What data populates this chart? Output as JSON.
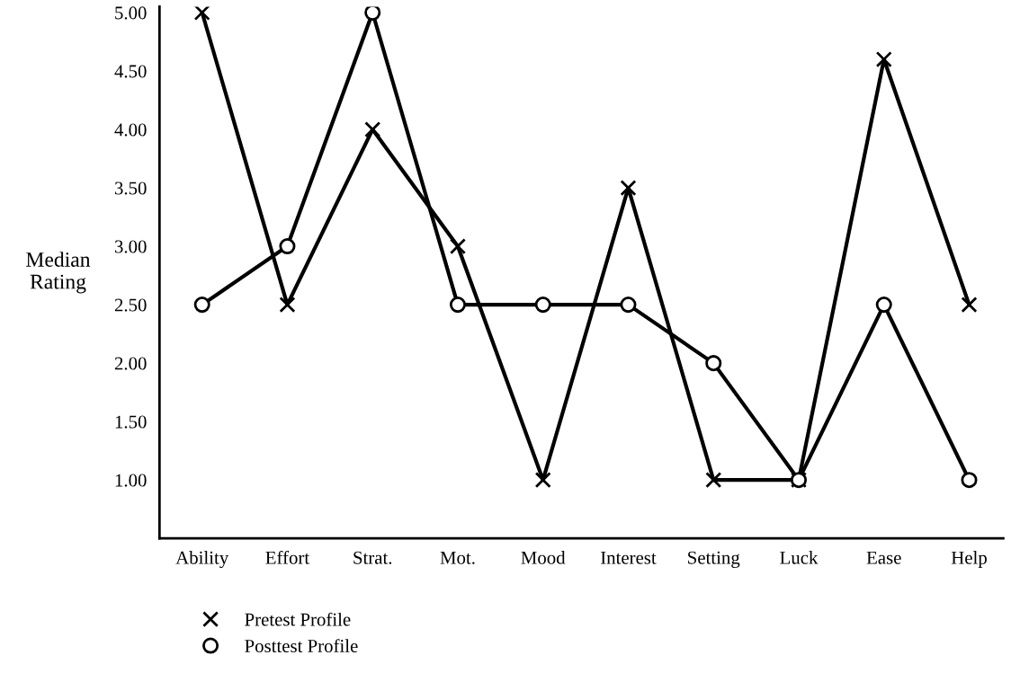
{
  "chart_data": {
    "type": "line",
    "ylabel": "Median\nRating",
    "categories": [
      "Ability",
      "Effort",
      "Strat.",
      "Mot.",
      "Mood",
      "Interest",
      "Setting",
      "Luck",
      "Ease",
      "Help"
    ],
    "series": [
      {
        "name": "Pretest Profile",
        "color": "#000000",
        "marker": "cross",
        "values": [
          5.0,
          2.5,
          4.0,
          3.0,
          1.0,
          3.5,
          1.0,
          1.0,
          4.6,
          2.5
        ]
      },
      {
        "name": "Posttest Profile",
        "color": "#000000",
        "marker": "circle",
        "values": [
          2.5,
          3.0,
          5.0,
          2.5,
          2.5,
          2.5,
          2.0,
          1.0,
          2.5,
          1.0
        ]
      }
    ],
    "ylim": [
      0.5,
      5.05
    ],
    "yticks": [
      {
        "value": 1,
        "label": "1.00"
      },
      {
        "value": 1.5,
        "label": "1.50"
      },
      {
        "value": 2,
        "label": "2.00"
      },
      {
        "value": 2.5,
        "label": "2.50"
      },
      {
        "value": 3,
        "label": "3.00"
      },
      {
        "value": 3.5,
        "label": "3.50"
      },
      {
        "value": 4,
        "label": "4.00"
      },
      {
        "value": 4.5,
        "label": "4.50"
      },
      {
        "value": 5,
        "label": "5.00"
      }
    ],
    "grid": false,
    "legend": "bottom left",
    "line_style": "solid"
  }
}
